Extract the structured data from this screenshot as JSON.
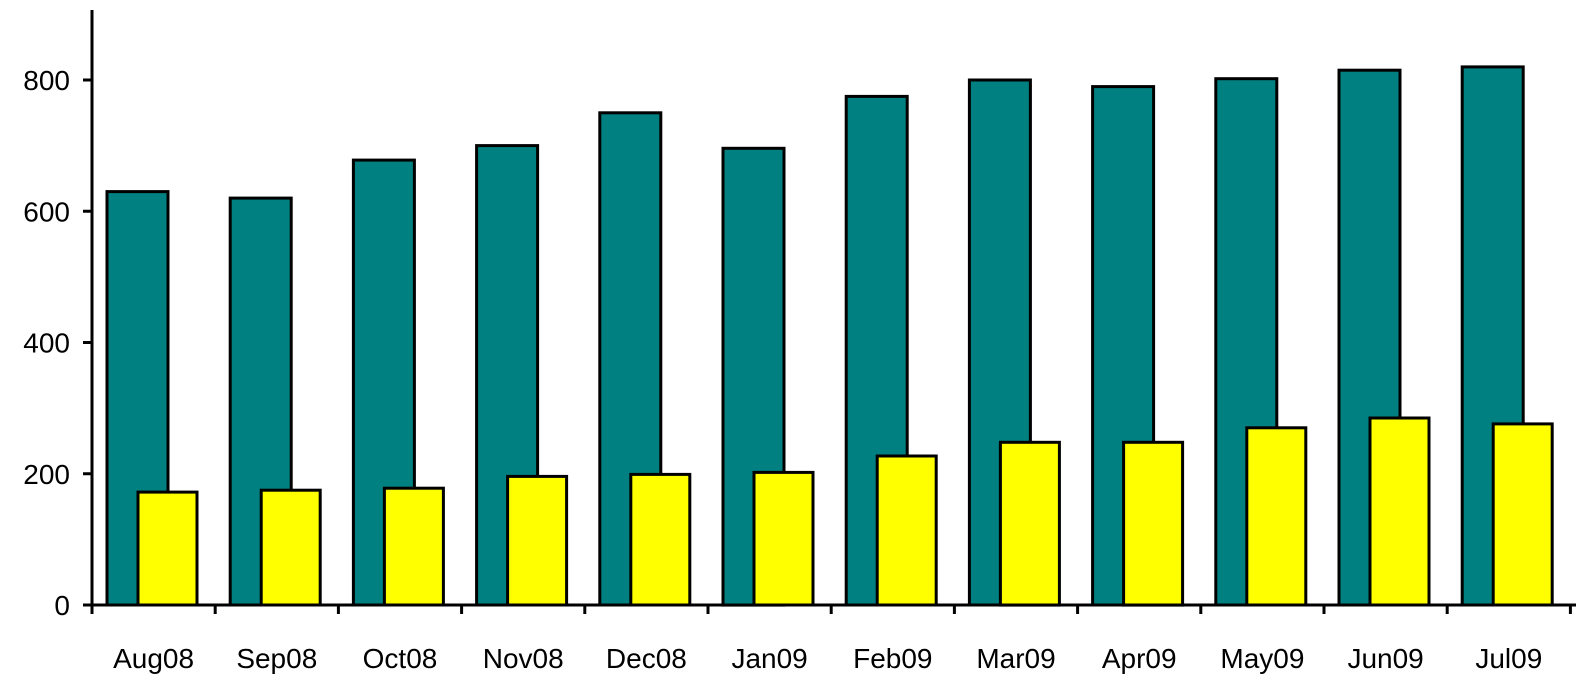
{
  "chart_data": {
    "type": "bar",
    "categories": [
      "Aug08",
      "Sep08",
      "Oct08",
      "Nov08",
      "Dec08",
      "Jan09",
      "Feb09",
      "Mar09",
      "Apr09",
      "May09",
      "Jun09",
      "Jul09"
    ],
    "series": [
      {
        "values": [
          630,
          620,
          678,
          700,
          750,
          696,
          775,
          800,
          790,
          802,
          815,
          820
        ],
        "color": "#008080"
      },
      {
        "values": [
          172,
          175,
          178,
          196,
          199,
          202,
          227,
          248,
          248,
          270,
          285,
          276
        ],
        "color": "#FFFF00"
      }
    ],
    "ylim": [
      0,
      900
    ],
    "yticks": [
      0,
      200,
      400,
      600,
      800
    ],
    "grid": false,
    "legend": "none"
  }
}
